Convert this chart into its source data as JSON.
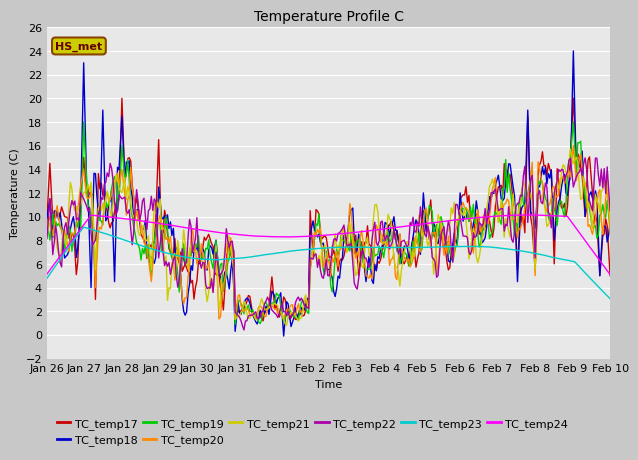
{
  "title": "Temperature Profile C",
  "xlabel": "Time",
  "ylabel": "Temperature (C)",
  "annotation": "HS_met",
  "ylim": [
    -2,
    26
  ],
  "series_colors": {
    "TC_temp17": "#cc0000",
    "TC_temp18": "#0000cc",
    "TC_temp19": "#00cc00",
    "TC_temp20": "#ff8800",
    "TC_temp21": "#cccc00",
    "TC_temp22": "#aa00aa",
    "TC_temp23": "#00cccc",
    "TC_temp24": "#ff00ff"
  },
  "xtick_labels": [
    "Jan 26",
    "Jan 27",
    "Jan 28",
    "Jan 29",
    "Jan 30",
    "Jan 31",
    "Feb 1",
    "Feb 2",
    "Feb 3",
    "Feb 4",
    "Feb 5",
    "Feb 6",
    "Feb 7",
    "Feb 8",
    "Feb 9",
    "Feb 10"
  ],
  "yticks": [
    -2,
    0,
    2,
    4,
    6,
    8,
    10,
    12,
    14,
    16,
    18,
    20,
    22,
    24,
    26
  ],
  "annotation_bg": "#cccc00",
  "annotation_border": "#884400",
  "fig_bg": "#c8c8c8",
  "ax_bg": "#e8e8e8",
  "grid_color": "#ffffff"
}
